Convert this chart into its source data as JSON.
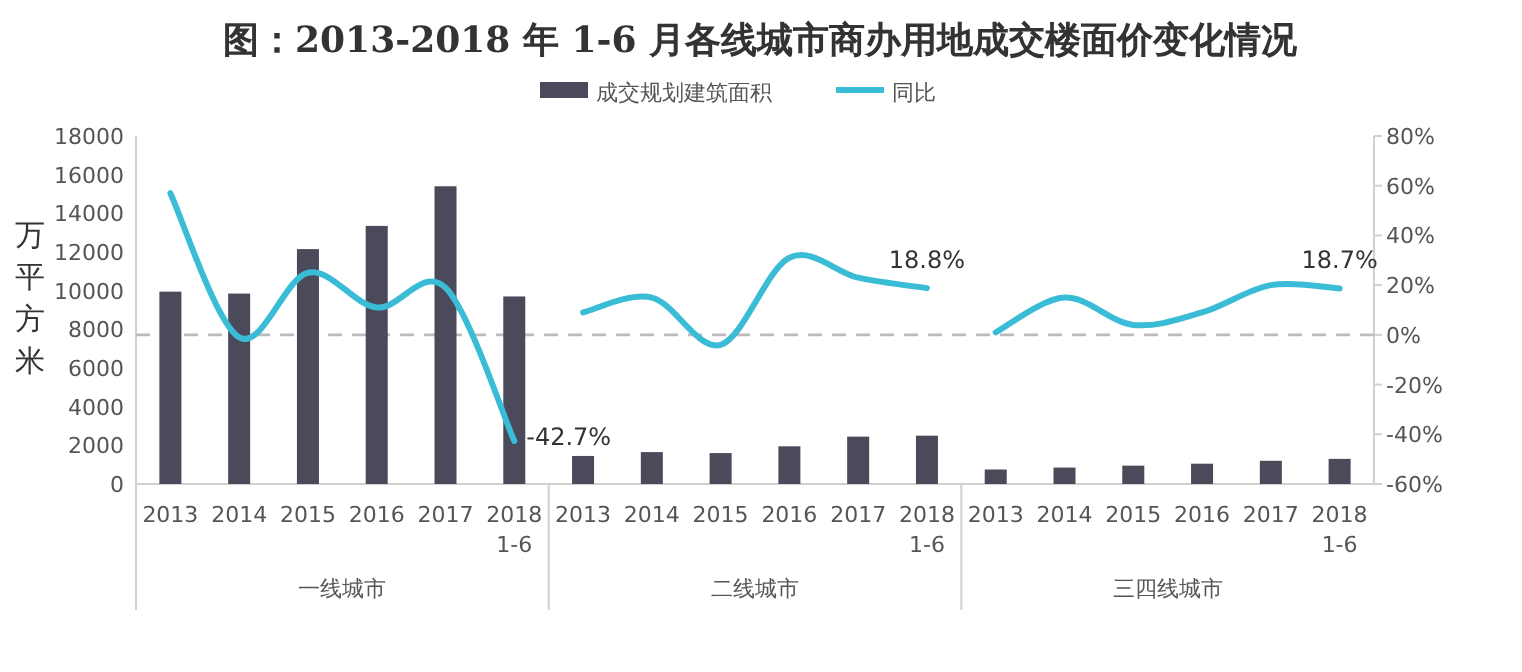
{
  "chart_data": {
    "type": "bar",
    "title": "图：2013-2018 年 1-6 月各线城市商办用地成交楼面价变化情况",
    "ylabel": "万平方米",
    "categories": [
      "2013",
      "2014",
      "2015",
      "2016",
      "2017",
      "2018 1-6",
      "2013",
      "2014",
      "2015",
      "2016",
      "2017",
      "2018 1-6",
      "2013",
      "2014",
      "2015",
      "2016",
      "2017",
      "2018 1-6"
    ],
    "annotations": [
      "一线城市",
      "二线城市",
      "三四线城市"
    ],
    "series": [
      {
        "name": "成交规划建筑面积",
        "color": "#4a4a5a",
        "values": [
          9950,
          9850,
          12150,
          13350,
          15400,
          9700,
          1450,
          1650,
          1600,
          1950,
          2450,
          2500,
          750,
          850,
          950,
          1050,
          1200,
          1300
        ]
      },
      {
        "name": "同比",
        "type": "line",
        "axis": "y2",
        "color": "#3bbcd6",
        "values": [
          57,
          -1,
          25,
          11,
          19,
          -42.7,
          9,
          15,
          -4,
          31,
          23,
          18.8,
          1,
          15,
          4,
          9,
          20,
          18.7
        ],
        "value_labels": [
          null,
          null,
          null,
          null,
          null,
          "-42.7%",
          null,
          null,
          null,
          null,
          null,
          "18.8%",
          null,
          null,
          null,
          null,
          null,
          "18.7%"
        ]
      }
    ],
    "ylim": [
      0,
      18000
    ],
    "yticks": [
      0,
      2000,
      4000,
      6000,
      8000,
      10000,
      12000,
      14000,
      16000,
      18000
    ],
    "y2lim": [
      -60,
      80
    ],
    "y2ticks": [
      {
        "value": -60,
        "label": "-60%"
      },
      {
        "value": -40,
        "label": "-40%"
      },
      {
        "value": -20,
        "label": "-20%"
      },
      {
        "value": 0,
        "label": "0%"
      },
      {
        "value": 20,
        "label": "20%"
      },
      {
        "value": 40,
        "label": "40%"
      },
      {
        "value": 60,
        "label": "60%"
      },
      {
        "value": 80,
        "label": "80%"
      }
    ],
    "ref_lines": [
      {
        "axis": "y2",
        "value": 0,
        "color": "#bbbbbb",
        "line_style": "dashed"
      }
    ],
    "legend": "top",
    "grid": false
  }
}
